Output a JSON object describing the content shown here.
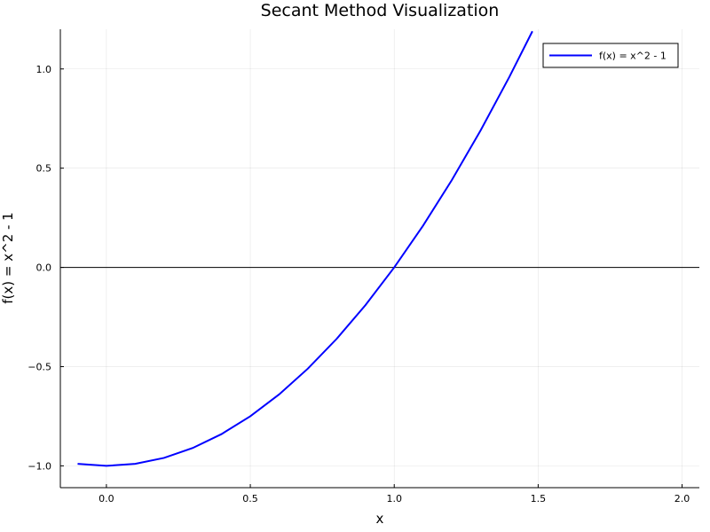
{
  "chart_data": {
    "type": "line",
    "title": "Secant Method Visualization",
    "xlabel": "x",
    "ylabel": "f(x) = x^2 - 1",
    "xlim": [
      -0.16,
      2.06
    ],
    "ylim": [
      -1.11,
      1.2
    ],
    "xticks": [
      0.0,
      0.5,
      1.0,
      1.5,
      2.0
    ],
    "xtick_labels": [
      "0.0",
      "0.5",
      "1.0",
      "1.5",
      "2.0"
    ],
    "yticks": [
      -1.0,
      -0.5,
      0.0,
      0.5,
      1.0
    ],
    "ytick_labels": [
      "−1.0",
      "−0.5",
      "0.0",
      "0.5",
      "1.0"
    ],
    "grid": true,
    "legend_position": "top-right",
    "reference_lines": [
      {
        "axis": "y",
        "value": 0,
        "color": "#000000"
      }
    ],
    "series": [
      {
        "name": "f(x) = x^2 - 1",
        "color": "#0000ff",
        "x": [
          -0.1,
          0.0,
          0.1,
          0.2,
          0.3,
          0.4,
          0.5,
          0.6,
          0.7,
          0.8,
          0.9,
          1.0,
          1.1,
          1.2,
          1.3,
          1.4,
          1.48
        ],
        "y": [
          -0.99,
          -1.0,
          -0.99,
          -0.96,
          -0.91,
          -0.84,
          -0.75,
          -0.64,
          -0.51,
          -0.36,
          -0.19,
          0.0,
          0.21,
          0.44,
          0.69,
          0.96,
          1.19
        ]
      }
    ]
  }
}
